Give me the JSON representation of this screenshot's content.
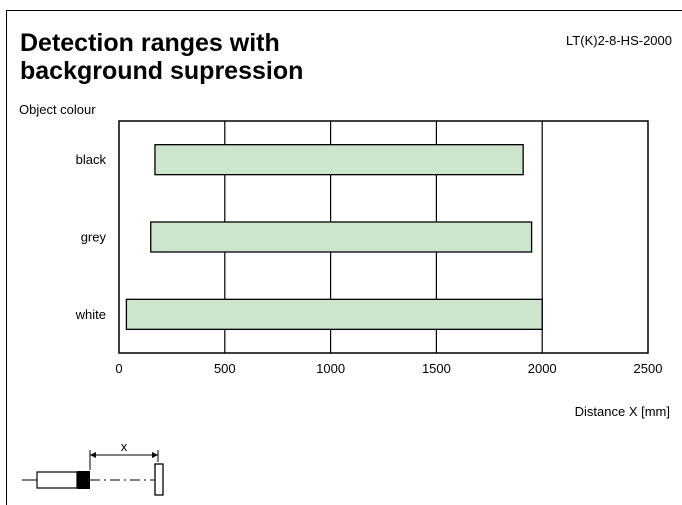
{
  "header": {
    "title_line1": "Detection ranges with",
    "title_line2": "background supression",
    "model": "LT(K)2-8-HS-2000"
  },
  "chart_data": {
    "type": "bar",
    "orientation": "horizontal",
    "style": "range",
    "ylabel": "Object colour",
    "xlabel": "Distance X [mm]",
    "xlim": [
      0,
      2500
    ],
    "xticks": [
      0,
      500,
      1000,
      1500,
      2000,
      2500
    ],
    "categories": [
      "black",
      "grey",
      "white"
    ],
    "ranges": [
      {
        "category": "black",
        "start": 170,
        "end": 1910
      },
      {
        "category": "grey",
        "start": 150,
        "end": 1950
      },
      {
        "category": "white",
        "start": 35,
        "end": 2000
      }
    ],
    "grid": true,
    "bar_color": "#cce5cc",
    "bar_edge_color": "#000000"
  },
  "diagram": {
    "x_label": "x"
  }
}
